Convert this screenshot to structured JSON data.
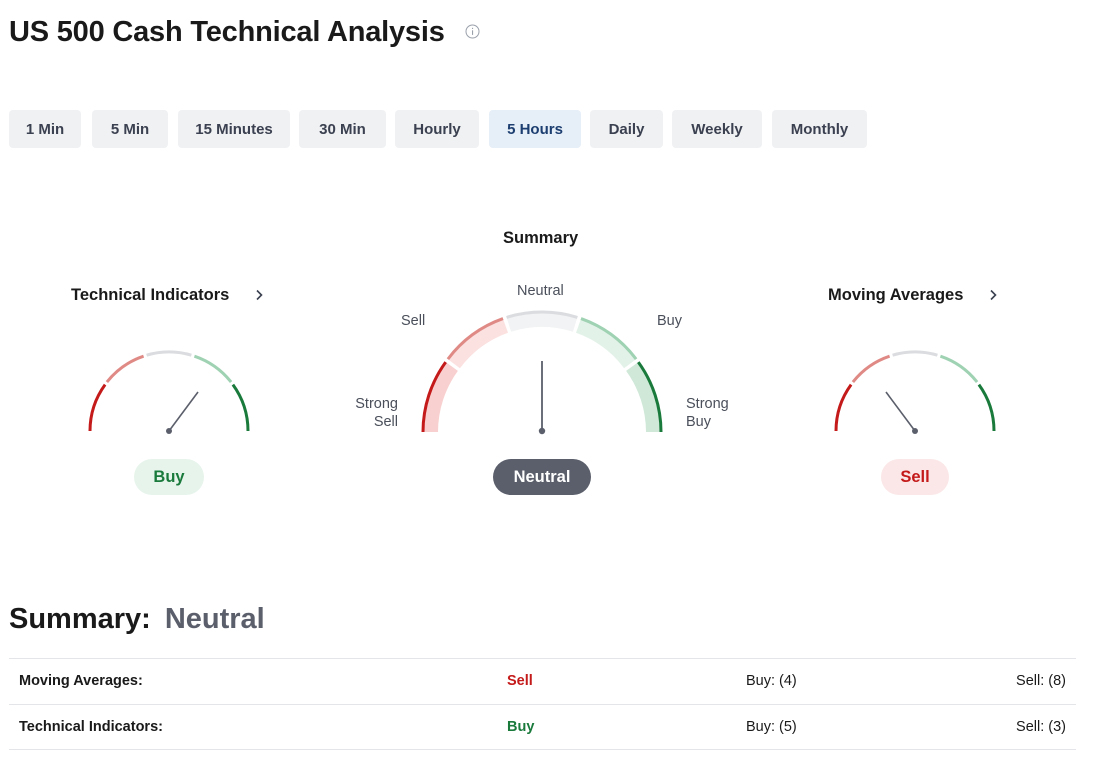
{
  "header": {
    "title": "US 500 Cash Technical Analysis"
  },
  "tabs": [
    {
      "label": "1 Min"
    },
    {
      "label": "5 Min"
    },
    {
      "label": "15 Minutes"
    },
    {
      "label": "30 Min"
    },
    {
      "label": "Hourly"
    },
    {
      "label": "5 Hours",
      "active": true
    },
    {
      "label": "Daily"
    },
    {
      "label": "Weekly"
    },
    {
      "label": "Monthly"
    }
  ],
  "gauges": {
    "technical_indicators": {
      "title": "Technical Indicators",
      "verdict": "Buy"
    },
    "summary": {
      "title": "Summary",
      "verdict": "Neutral",
      "scale_labels": {
        "strong_sell": "Strong\nSell",
        "sell": "Sell",
        "neutral": "Neutral",
        "buy": "Buy",
        "strong_buy": "Strong\nBuy"
      }
    },
    "moving_averages": {
      "title": "Moving Averages",
      "verdict": "Sell"
    }
  },
  "summary_section": {
    "label": "Summary:",
    "value": "Neutral",
    "rows": [
      {
        "label": "Moving Averages:",
        "action": "Sell",
        "buy": "Buy: (4)",
        "sell": "Sell: (8)"
      },
      {
        "label": "Technical Indicators:",
        "action": "Buy",
        "buy": "Buy: (5)",
        "sell": "Sell: (3)"
      }
    ]
  },
  "colors": {
    "strong_sell": "#c41a1a",
    "sell": "#e08a86",
    "neutral": "#dadcdf",
    "buy": "#9fd2b2",
    "strong_buy": "#1a7a3c"
  },
  "icons": {
    "info": "info-icon",
    "chevron": "chevron-right-icon"
  }
}
